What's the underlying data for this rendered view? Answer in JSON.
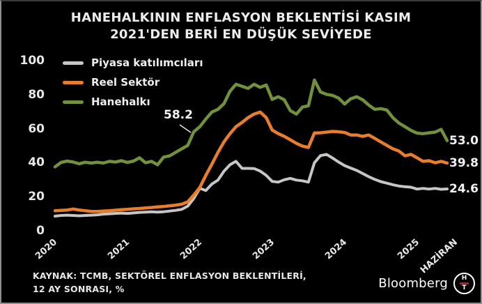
{
  "title": {
    "line1": "HANEHALKININ ENFLASYON BEKLENTİSİ KASIM",
    "line2": "2021'DEN BERİ EN DÜŞÜK SEVİYEDE"
  },
  "source": {
    "line1": "KAYNAK: TCMB, SEKTÖREL ENFLASYON BEKLENTİLERİ,",
    "line2": "12 AY SONRASI, %"
  },
  "logo": {
    "brand": "Bloomberg",
    "monogram_top": "H",
    "monogram_bottom": "T",
    "red": "#b01e28"
  },
  "colors": {
    "background": "#000000",
    "text": "#ececec",
    "frame_border": "#8f8f8f"
  },
  "chart_data": {
    "type": "line",
    "title": "HANEHALKININ ENFLASYON BEKLENTİSİ KASIM 2021'DEN BERİ EN DÜŞÜK SEVİYEDE",
    "x_start": "2020-01",
    "x_end": "2025-06",
    "x_interval": "monthly",
    "ylim": [
      0,
      100
    ],
    "grid": false,
    "legend_position": "top-left",
    "y_ticks": [
      "100",
      "80",
      "60",
      "40",
      "20",
      "0"
    ],
    "x_tick_labels": [
      "2020",
      "2021",
      "2022",
      "2023",
      "2024",
      "2025",
      "HAZİRAN"
    ],
    "annotation": {
      "text": "58.2",
      "series": "Hanehalkı",
      "x": "2021-12",
      "value": 58.2
    },
    "series": [
      {
        "name": "Piyasa katılımcıları",
        "color": "#c6c6c6",
        "width": 4,
        "end_label": "24.6",
        "values": [
          8.6,
          9.0,
          9.2,
          9.0,
          8.8,
          9.0,
          9.2,
          9.4,
          9.8,
          10.0,
          10.2,
          10.4,
          10.2,
          10.5,
          10.8,
          11.0,
          11.2,
          11.0,
          11.2,
          11.6,
          12.0,
          12.6,
          14.5,
          19.0,
          25.0,
          23.7,
          27.5,
          29.8,
          35.0,
          38.8,
          40.8,
          36.7,
          36.7,
          36.6,
          35.1,
          32.6,
          29.0,
          28.6,
          30.0,
          30.8,
          29.8,
          29.4,
          28.6,
          40.0,
          44.2,
          44.9,
          42.8,
          40.4,
          38.3,
          36.9,
          35.5,
          33.7,
          31.8,
          30.2,
          28.9,
          28.0,
          27.1,
          26.3,
          25.9,
          25.6,
          24.5,
          24.9,
          24.5,
          24.9,
          24.4,
          24.6
        ]
      },
      {
        "name": "Reel Sektör",
        "color": "#e87e2b",
        "width": 4.5,
        "end_label": "39.8",
        "values": [
          11.8,
          12.0,
          12.2,
          12.8,
          12.2,
          11.8,
          11.4,
          11.4,
          11.6,
          11.8,
          12.1,
          12.4,
          12.6,
          12.9,
          13.1,
          13.4,
          13.7,
          14.0,
          14.3,
          14.7,
          15.1,
          15.6,
          17.0,
          21.0,
          25.5,
          32.6,
          39.2,
          46.1,
          52.2,
          57.1,
          61.2,
          63.7,
          66.5,
          68.6,
          69.8,
          66.5,
          59.2,
          57.1,
          55.5,
          53.5,
          51.4,
          49.8,
          49.0,
          57.5,
          57.6,
          58.0,
          58.4,
          58.2,
          57.8,
          56.3,
          56.3,
          55.5,
          56.3,
          54.3,
          52.2,
          50.2,
          48.2,
          46.9,
          44.1,
          44.9,
          42.9,
          40.8,
          41.2,
          40.0,
          40.8,
          39.8
        ]
      },
      {
        "name": "Hanehalkı",
        "color": "#71913b",
        "width": 4.5,
        "end_label": "53.0",
        "values": [
          37.6,
          40.2,
          41.0,
          40.4,
          39.4,
          40.3,
          39.8,
          40.3,
          39.8,
          40.8,
          40.4,
          41.2,
          40.2,
          41.0,
          42.9,
          40.0,
          40.8,
          38.8,
          43.3,
          44.0,
          46.1,
          48.2,
          50.2,
          58.2,
          61.2,
          65.7,
          69.8,
          71.4,
          74.7,
          82.0,
          86.1,
          84.9,
          83.7,
          86.1,
          84.3,
          85.7,
          77.2,
          78.8,
          77.0,
          70.6,
          68.6,
          72.7,
          73.5,
          88.6,
          81.6,
          80.2,
          79.6,
          78.0,
          74.5,
          77.6,
          78.8,
          77.0,
          73.9,
          71.4,
          71.8,
          71.0,
          66.5,
          63.3,
          61.2,
          59.0,
          57.4,
          57.1,
          57.6,
          58.0,
          59.6,
          53.0
        ]
      }
    ]
  }
}
